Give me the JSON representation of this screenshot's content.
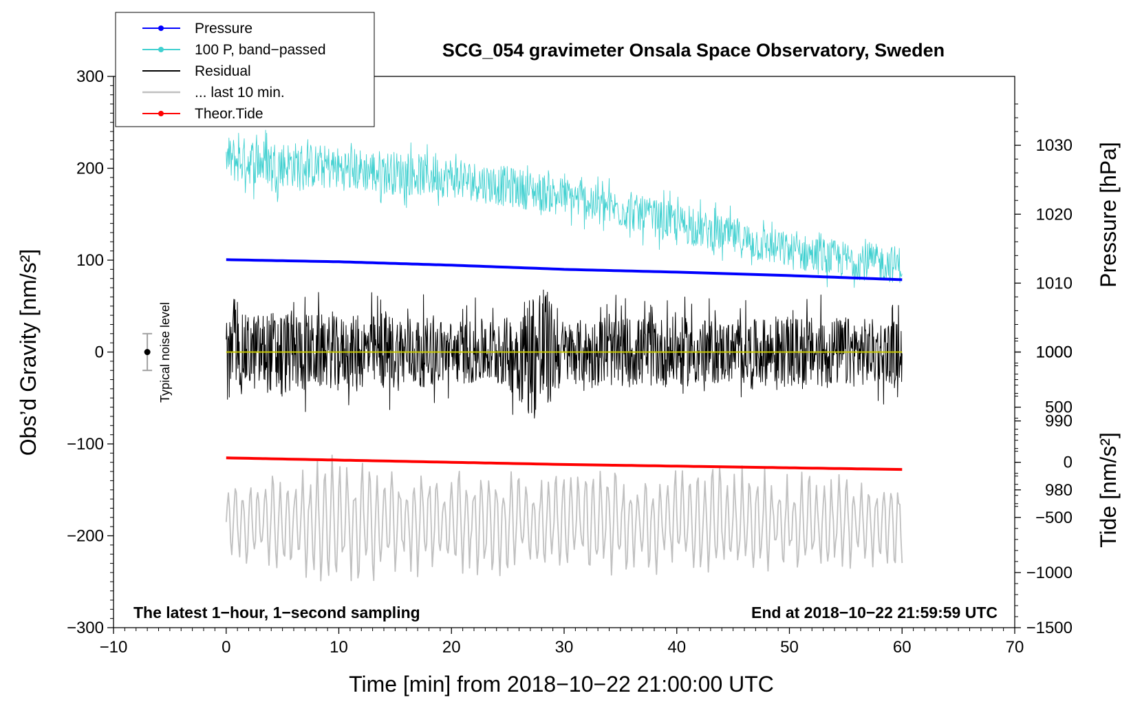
{
  "chart_data": {
    "type": "line",
    "title": "SCG_054 gravimeter Onsala Space Observatory, Sweden",
    "xlabel": "Time [min] from 2018−10−22 21:00:00 UTC",
    "ylabel_main": "Obs’d Gravity [nm/s²]",
    "ylabel_pressure": "Pressure [hPa]",
    "ylabel_tide": "Tide [nm/s²]",
    "xlim": [
      -10,
      70
    ],
    "ylim": [
      -300,
      300
    ],
    "pressure_ylim": [
      960,
      1040
    ],
    "tide_ylim": [
      -1500,
      3500
    ],
    "x_ticks": [
      -10,
      0,
      10,
      20,
      30,
      40,
      50,
      60,
      70
    ],
    "x_tick_labels": [
      "−10",
      "0",
      "10",
      "20",
      "30",
      "40",
      "50",
      "60",
      "70"
    ],
    "y_ticks": [
      300,
      200,
      100,
      0,
      -100,
      -200,
      -300
    ],
    "y_tick_labels": [
      "300",
      "200",
      "100",
      "0",
      "−100",
      "−200",
      "−300"
    ],
    "pressure_ticks": [
      1030,
      1020,
      1010,
      1000,
      990,
      980
    ],
    "pressure_tick_labels": [
      "1030",
      "1020",
      "1010",
      "1000",
      "990",
      "980"
    ],
    "tide_ticks": [
      1000,
      500,
      0,
      -500,
      -1000,
      -1500
    ],
    "tide_tick_labels": [
      "1000",
      "500",
      "0",
      "−500",
      "−1000",
      "−1500"
    ],
    "annotation_left": "The latest 1−hour, 1−second sampling",
    "annotation_right": "End at 2018−10−22 21:59:59 UTC",
    "noise_label": "Typical noise level",
    "noise_level": {
      "x": -7,
      "center": 0,
      "half_range": 20
    },
    "legend": [
      {
        "label": "Pressure",
        "color": "#0000ff",
        "marker": true
      },
      {
        "label": "100 P, band−passed",
        "color": "#40d0d0",
        "marker": true
      },
      {
        "label": "Residual",
        "color": "#000000",
        "marker": false
      },
      {
        "label": "... last 10 min.",
        "color": "#c0c0c0",
        "marker": false
      },
      {
        "label": "Theor.Tide",
        "color": "#ff0000",
        "marker": true
      }
    ],
    "series": [
      {
        "name": "Pressure",
        "axis": "pressure",
        "color": "#0000ff",
        "x": [
          0,
          10,
          20,
          30,
          40,
          50,
          60
        ],
        "values": [
          1013.4,
          1013.1,
          1012.6,
          1012.0,
          1011.6,
          1011.1,
          1010.5
        ]
      },
      {
        "name": "100 P, band-passed",
        "axis": "main",
        "color": "#40d0d0",
        "x": [
          0,
          5,
          10,
          15,
          20,
          25,
          30,
          35,
          40,
          45,
          50,
          55,
          60
        ],
        "values": [
          210,
          205,
          200,
          195,
          190,
          180,
          170,
          155,
          140,
          125,
          110,
          100,
          95
        ],
        "amplitude": [
          30,
          30,
          28,
          28,
          26,
          26,
          24,
          24,
          24,
          24,
          24,
          24,
          24
        ]
      },
      {
        "name": "Residual",
        "axis": "main",
        "color": "#000000",
        "x": [
          0,
          5,
          10,
          15,
          20,
          25,
          28,
          29,
          30,
          35,
          40,
          45,
          50,
          55,
          60
        ],
        "values": [
          0,
          0,
          0,
          0,
          0,
          0,
          0,
          0,
          0,
          0,
          0,
          0,
          0,
          0,
          0
        ],
        "amplitude": [
          45,
          55,
          45,
          50,
          40,
          45,
          100,
          60,
          40,
          45,
          45,
          40,
          45,
          45,
          40
        ]
      },
      {
        "name": "Residual smoothed",
        "axis": "main",
        "color": "#c8c800",
        "x": [
          0,
          60
        ],
        "values": [
          0,
          0
        ]
      },
      {
        "name": "... last 10 min.",
        "axis": "main",
        "color": "#c0c0c0",
        "x": [
          0,
          10,
          20,
          30,
          40,
          50,
          60
        ],
        "values": [
          -185,
          -185,
          -185,
          -185,
          -185,
          -185,
          -185
        ],
        "amplitude": [
          40,
          70,
          55,
          55,
          60,
          55,
          45
        ]
      },
      {
        "name": "Theor.Tide",
        "axis": "tide",
        "color": "#ff0000",
        "x": [
          0,
          10,
          20,
          30,
          40,
          50,
          60
        ],
        "values": [
          40,
          20,
          0,
          -20,
          -35,
          -50,
          -65
        ]
      }
    ]
  }
}
